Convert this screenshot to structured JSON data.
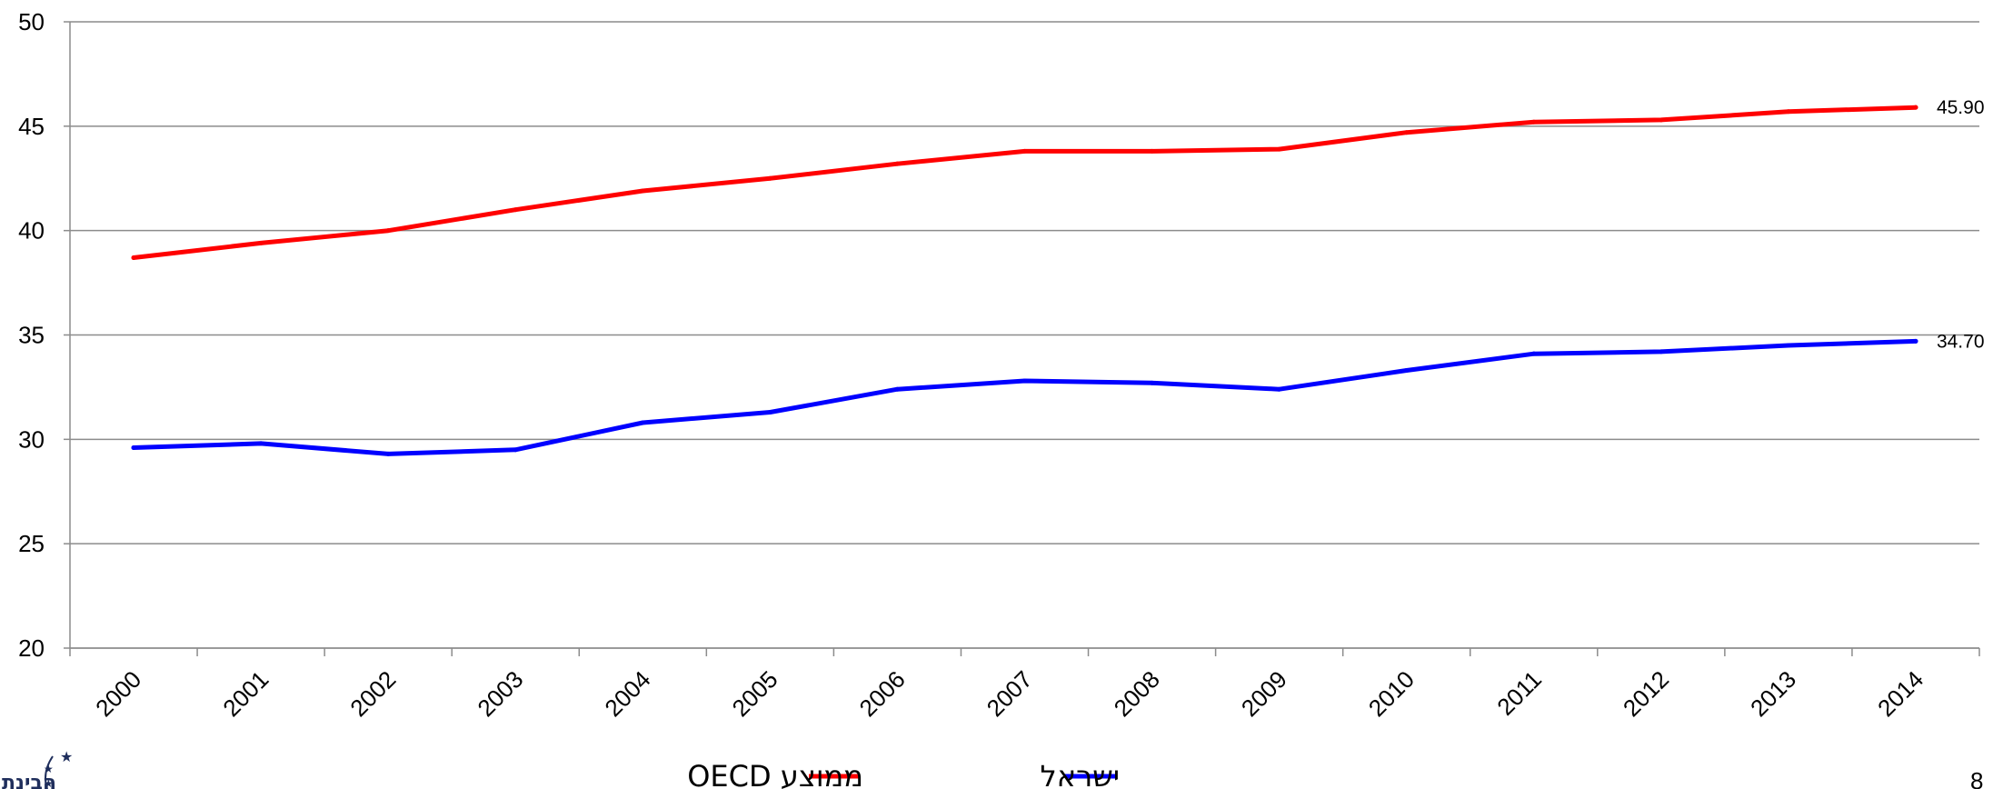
{
  "chart_data": {
    "type": "line",
    "title": "",
    "xlabel": "",
    "ylabel": "",
    "x": [
      "2000",
      "2001",
      "2002",
      "2003",
      "2004",
      "2005",
      "2006",
      "2007",
      "2008",
      "2009",
      "2010",
      "2011",
      "2012",
      "2013",
      "2014"
    ],
    "ylim": [
      20,
      50
    ],
    "yticks": [
      20,
      25,
      30,
      35,
      40,
      45,
      50
    ],
    "grid": true,
    "legend_position": "bottom",
    "series": [
      {
        "name": "ממוצע OECD",
        "legend_label": "ממוצע OECD",
        "color": "#ff0000",
        "values": [
          38.7,
          39.4,
          40.0,
          41.0,
          41.9,
          42.5,
          43.2,
          43.8,
          43.8,
          43.9,
          44.7,
          45.2,
          45.3,
          45.7,
          45.9
        ],
        "end_label": "45.90"
      },
      {
        "name": "ישראל",
        "legend_label": "ישראל",
        "color": "#0000ff",
        "values": [
          29.6,
          29.8,
          29.3,
          29.5,
          30.8,
          31.3,
          32.4,
          32.8,
          32.7,
          32.4,
          33.3,
          34.1,
          34.2,
          34.5,
          34.7
        ],
        "end_label": "34.70"
      }
    ]
  },
  "logo": {
    "text": "הבינתחומי",
    "icon": "stars-logo-icon"
  },
  "page_number": "8"
}
